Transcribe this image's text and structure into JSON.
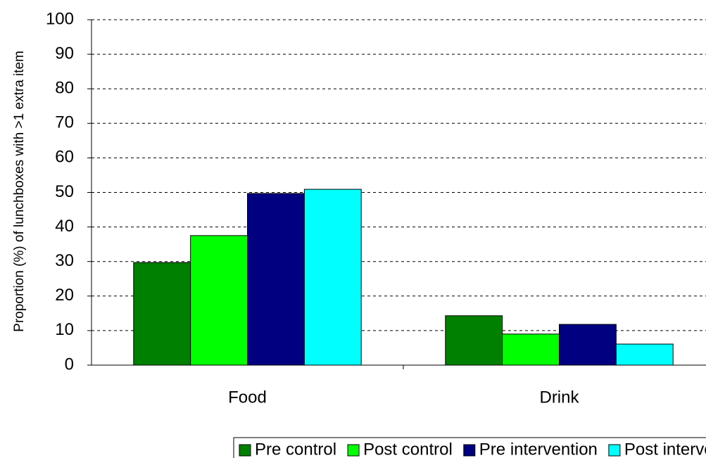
{
  "chart_data": {
    "type": "bar",
    "y_label": "Proportion (%) of  lunchboxes with >1 extra item",
    "categories": [
      "Food",
      "Drink"
    ],
    "series": [
      {
        "name": "Pre control",
        "color": "#008000",
        "values": [
          29.7,
          14.3
        ]
      },
      {
        "name": "Post control",
        "color": "#00ff00",
        "values": [
          37.5,
          9.0
        ]
      },
      {
        "name": "Pre intervention",
        "color": "#000080",
        "values": [
          49.7,
          11.8
        ]
      },
      {
        "name": "Post intervention",
        "color": "#00ffff",
        "values": [
          50.9,
          6.1
        ]
      }
    ],
    "ylim": [
      0,
      100
    ],
    "yticks": [
      0,
      10,
      20,
      30,
      40,
      50,
      60,
      70,
      80,
      90,
      100
    ],
    "grid": true,
    "legend": "bottom"
  }
}
